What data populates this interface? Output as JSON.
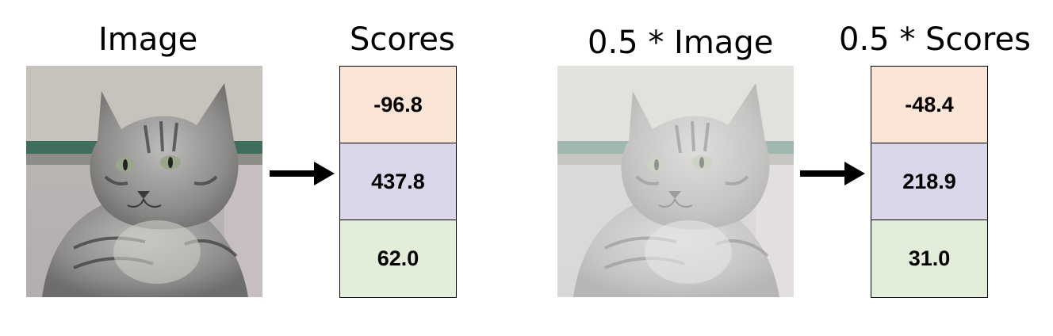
{
  "panels": [
    {
      "image_label": "Image",
      "scores_label": "Scores",
      "scores": [
        {
          "value": "-96.8",
          "color": "#fbe5d6"
        },
        {
          "value": "437.8",
          "color": "#dcd6ea"
        },
        {
          "value": "62.0",
          "color": "#e2eeda"
        }
      ]
    },
    {
      "image_label": "0.5 * Image",
      "scores_label": "0.5 * Scores",
      "scores": [
        {
          "value": "-48.4",
          "color": "#fbe5d6"
        },
        {
          "value": "218.9",
          "color": "#dcd6ea"
        },
        {
          "value": "31.0",
          "color": "#e2eeda"
        }
      ]
    }
  ],
  "icons": {
    "arrow": "right-arrow-icon",
    "image": "cat-photo"
  }
}
